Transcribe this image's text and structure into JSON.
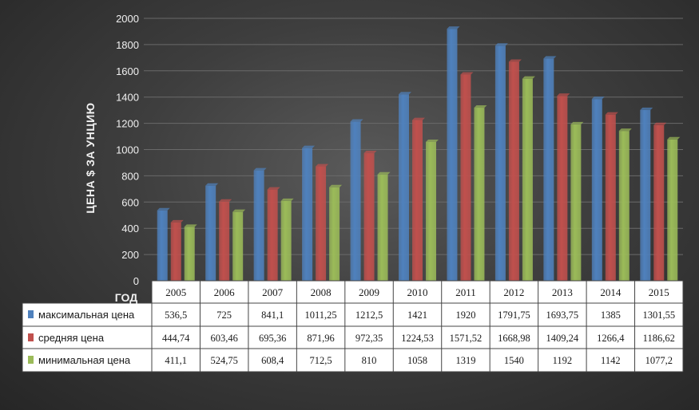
{
  "chart_data": {
    "type": "bar",
    "title": "",
    "ylabel": "ЦЕНА $ ЗА УНЦИЮ",
    "xlabel": "ГОД",
    "ylim": [
      0,
      2000
    ],
    "yticks": [
      0,
      200,
      400,
      600,
      800,
      1000,
      1200,
      1400,
      1600,
      1800,
      2000
    ],
    "grid": true,
    "legend": "table-below",
    "categories": [
      "2005",
      "2006",
      "2007",
      "2008",
      "2009",
      "2010",
      "2011",
      "2012",
      "2013",
      "2014",
      "2015"
    ],
    "series": [
      {
        "name": "максимальная цена",
        "color": "#4f81bd",
        "values": [
          536.5,
          725,
          841.1,
          1011.25,
          1212.5,
          1421,
          1920,
          1791.75,
          1693.75,
          1385,
          1301.55
        ],
        "labels": [
          "536,5",
          "725",
          "841,1",
          "1011,25",
          "1212,5",
          "1421",
          "1920",
          "1791,75",
          "1693,75",
          "1385",
          "1301,55"
        ]
      },
      {
        "name": "средняя цена",
        "color": "#c0504d",
        "values": [
          444.74,
          603.46,
          695.36,
          871.96,
          972.35,
          1224.53,
          1571.52,
          1668.98,
          1409.24,
          1266.4,
          1186.62
        ],
        "labels": [
          "444,74",
          "603,46",
          "695,36",
          "871,96",
          "972,35",
          "1224,53",
          "1571,52",
          "1668,98",
          "1409,24",
          "1266,4",
          "1186,62"
        ]
      },
      {
        "name": "минимальная цена",
        "color": "#9bbb59",
        "values": [
          411.1,
          524.75,
          608.4,
          712.5,
          810,
          1058,
          1319,
          1540,
          1192,
          1142,
          1077.2
        ],
        "labels": [
          "411,1",
          "524,75",
          "608,4",
          "712,5",
          "810",
          "1058",
          "1319",
          "1540",
          "1192",
          "1142",
          "1077,2"
        ]
      }
    ]
  }
}
